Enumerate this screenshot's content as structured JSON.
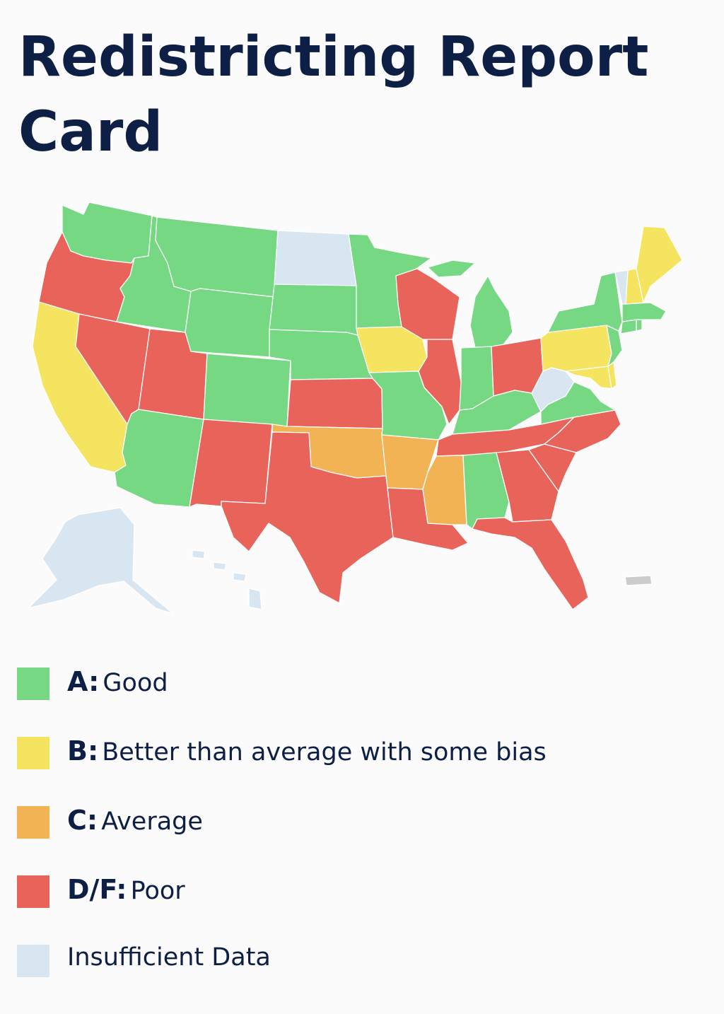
{
  "title": "Redistricting Report Card",
  "colors": {
    "A": "#77d884",
    "B": "#f5e45f",
    "C": "#f2b354",
    "DF": "#e8635a",
    "insufficient": "#d8e6f1",
    "territory": "#cccccc"
  },
  "legend": [
    {
      "key": "A",
      "grade": "A:",
      "desc": "Good"
    },
    {
      "key": "B",
      "grade": "B:",
      "desc": "Better than average with some bias"
    },
    {
      "key": "C",
      "grade": "C:",
      "desc": "Average"
    },
    {
      "key": "DF",
      "grade": "D/F:",
      "desc": "Poor"
    },
    {
      "key": "insufficient",
      "grade": "",
      "desc": "Insufficient Data"
    }
  ],
  "states": {
    "WA": "A",
    "OR": "DF",
    "CA": "B",
    "NV": "DF",
    "ID": "A",
    "MT": "A",
    "WY": "A",
    "UT": "DF",
    "AZ": "A",
    "CO": "A",
    "NM": "DF",
    "ND": "insufficient",
    "SD": "A",
    "NE": "A",
    "KS": "DF",
    "OK": "C",
    "TX": "DF",
    "MN": "A",
    "IA": "B",
    "MO": "A",
    "AR": "C",
    "LA": "DF",
    "WI": "DF",
    "IL": "DF",
    "MI": "A",
    "IN": "A",
    "OH": "DF",
    "KY": "A",
    "TN": "DF",
    "MS": "C",
    "AL": "A",
    "GA": "DF",
    "FL": "DF",
    "SC": "DF",
    "NC": "DF",
    "VA": "A",
    "WV": "insufficient",
    "MD": "B",
    "DE": "B",
    "PA": "B",
    "NJ": "A",
    "NY": "A",
    "CT": "A",
    "RI": "A",
    "MA": "A",
    "VT": "insufficient",
    "NH": "B",
    "ME": "B",
    "AK": "insufficient",
    "HI": "insufficient",
    "PR": "territory"
  }
}
